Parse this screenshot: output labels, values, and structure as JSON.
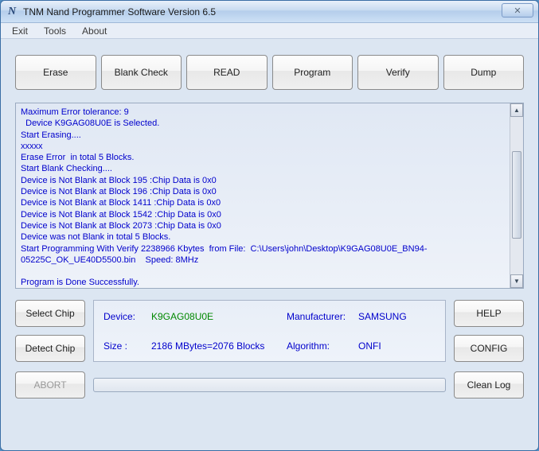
{
  "window": {
    "title": "TNM  Nand Programmer Software       Version 6.5",
    "close_glyph": "✕"
  },
  "menu": {
    "exit": "Exit",
    "tools": "Tools",
    "about": "About"
  },
  "toolbar": {
    "erase": "Erase",
    "blank_check": "Blank  Check",
    "read": "READ",
    "program": "Program",
    "verify": "Verify",
    "dump": "Dump"
  },
  "log_text": "Maximum Error tolerance: 9\n  Device K9GAG08U0E is Selected.\nStart Erasing....\nxxxxx\nErase Error  in total 5 Blocks.\nStart Blank Checking....\nDevice is Not Blank at Block 195 :Chip Data is 0x0\nDevice is Not Blank at Block 196 :Chip Data is 0x0\nDevice is Not Blank at Block 1411 :Chip Data is 0x0\nDevice is Not Blank at Block 1542 :Chip Data is 0x0\nDevice is Not Blank at Block 2073 :Chip Data is 0x0\nDevice was not Blank in total 5 Blocks.\nStart Programming With Verify 2238966 Kbytes  from File:  C:\\Users\\john\\Desktop\\K9GAG08U0E_BN94-05225C_OK_UE40D5500.bin    Speed: 8MHz\n\nProgram is Done Successfully.",
  "side": {
    "select_chip": "Select Chip",
    "detect_chip": "Detect Chip",
    "help": "HELP",
    "config": "CONFIG"
  },
  "info": {
    "device_lbl": "Device:",
    "device_val": "K9GAG08U0E",
    "manufacturer_lbl": "Manufacturer:",
    "manufacturer_val": "SAMSUNG",
    "size_lbl": "Size :",
    "size_val": "2186 MBytes=2076 Blocks",
    "algorithm_lbl": "Algorithm:",
    "algorithm_val": "ONFI"
  },
  "bottom": {
    "abort": "ABORT",
    "clean_log": "Clean Log"
  },
  "colors": {
    "log_text": "#0000cc",
    "value_green": "#008800",
    "window_bg": "#dce6f2"
  }
}
